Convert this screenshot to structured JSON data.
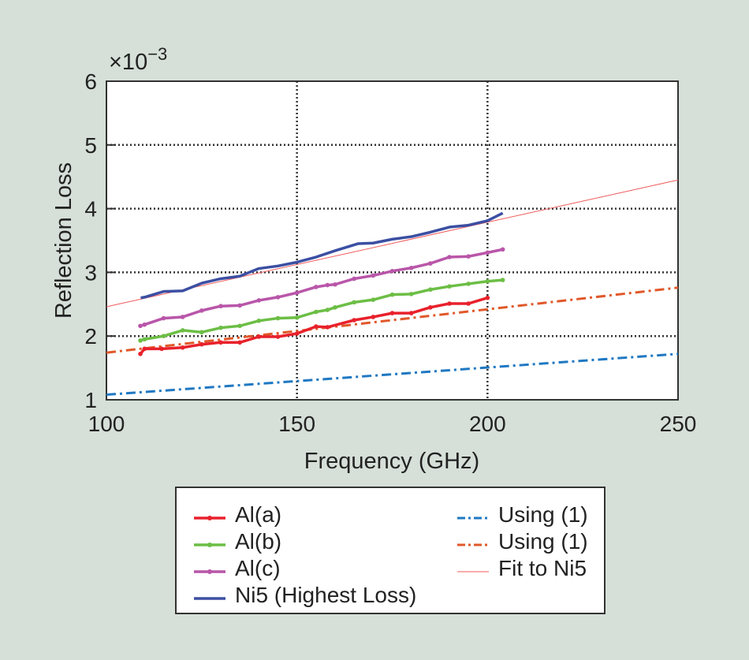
{
  "chart_data": {
    "type": "line",
    "title": "",
    "xlabel": "Frequency (GHz)",
    "ylabel": "Reflection Loss",
    "y_multiplier": "×10",
    "y_multiplier_exp": "−3",
    "xlim": [
      100,
      250
    ],
    "ylim": [
      1,
      6
    ],
    "xticks": [
      "100",
      "150",
      "200",
      "250"
    ],
    "yticks": [
      "1",
      "2",
      "3",
      "4",
      "5",
      "6"
    ],
    "grid": true,
    "legend_position": "below",
    "series": [
      {
        "name": "Al(a)",
        "color": "#e8212b",
        "style": "solid-marker",
        "x": [
          108.9,
          110,
          114.5,
          120,
          125,
          130,
          135,
          140,
          145,
          150,
          155,
          158,
          165,
          170,
          175,
          180,
          185,
          190,
          195,
          200
        ],
        "y": [
          1.72,
          1.8,
          1.8,
          1.82,
          1.87,
          1.9,
          1.9,
          1.99,
          1.99,
          2.04,
          2.15,
          2.14,
          2.25,
          2.3,
          2.36,
          2.36,
          2.45,
          2.51,
          2.51,
          2.6
        ]
      },
      {
        "name": "Al(b)",
        "color": "#6cbe45",
        "style": "solid-marker",
        "x": [
          108.9,
          110,
          115,
          120,
          125,
          130,
          135,
          140,
          145,
          150,
          155,
          158,
          160,
          165,
          170,
          175,
          180,
          185,
          190,
          195,
          200,
          204
        ],
        "y": [
          1.93,
          1.95,
          2.0,
          2.09,
          2.06,
          2.13,
          2.16,
          2.24,
          2.28,
          2.29,
          2.38,
          2.41,
          2.45,
          2.53,
          2.57,
          2.65,
          2.66,
          2.73,
          2.78,
          2.82,
          2.86,
          2.88
        ]
      },
      {
        "name": "Al(c)",
        "color": "#b956a9",
        "style": "solid-marker",
        "x": [
          108.9,
          110,
          115,
          120,
          125,
          130,
          135,
          140,
          145,
          150,
          155,
          158,
          160,
          165,
          170,
          175,
          180,
          185,
          190,
          195,
          200,
          204
        ],
        "y": [
          2.16,
          2.18,
          2.28,
          2.3,
          2.4,
          2.47,
          2.48,
          2.56,
          2.61,
          2.68,
          2.77,
          2.8,
          2.81,
          2.9,
          2.95,
          3.02,
          3.07,
          3.14,
          3.24,
          3.25,
          3.31,
          3.36
        ]
      },
      {
        "name": "Ni5 (Highest Loss)",
        "color": "#3b4fa2",
        "style": "solid",
        "x": [
          109,
          110,
          115,
          120,
          125,
          130,
          135,
          140,
          145,
          150,
          155,
          158,
          160,
          166,
          170,
          175,
          180,
          185,
          190,
          195,
          200,
          204
        ],
        "y": [
          2.6,
          2.61,
          2.7,
          2.71,
          2.83,
          2.9,
          2.94,
          3.06,
          3.1,
          3.16,
          3.24,
          3.3,
          3.34,
          3.45,
          3.46,
          3.52,
          3.56,
          3.63,
          3.71,
          3.74,
          3.81,
          3.93
        ]
      },
      {
        "name": "Using (1)",
        "color": "#1f78c2",
        "style": "dashdot",
        "x": [
          100,
          250
        ],
        "y": [
          1.08,
          1.72
        ]
      },
      {
        "name": "Using (1)",
        "color": "#e0582a",
        "style": "dashdot",
        "x": [
          100,
          250
        ],
        "y": [
          1.74,
          2.76
        ]
      },
      {
        "name": "Fit to Ni5",
        "color": "#f05a5a",
        "style": "thin",
        "x": [
          100,
          250
        ],
        "y": [
          2.46,
          4.45
        ]
      }
    ]
  }
}
